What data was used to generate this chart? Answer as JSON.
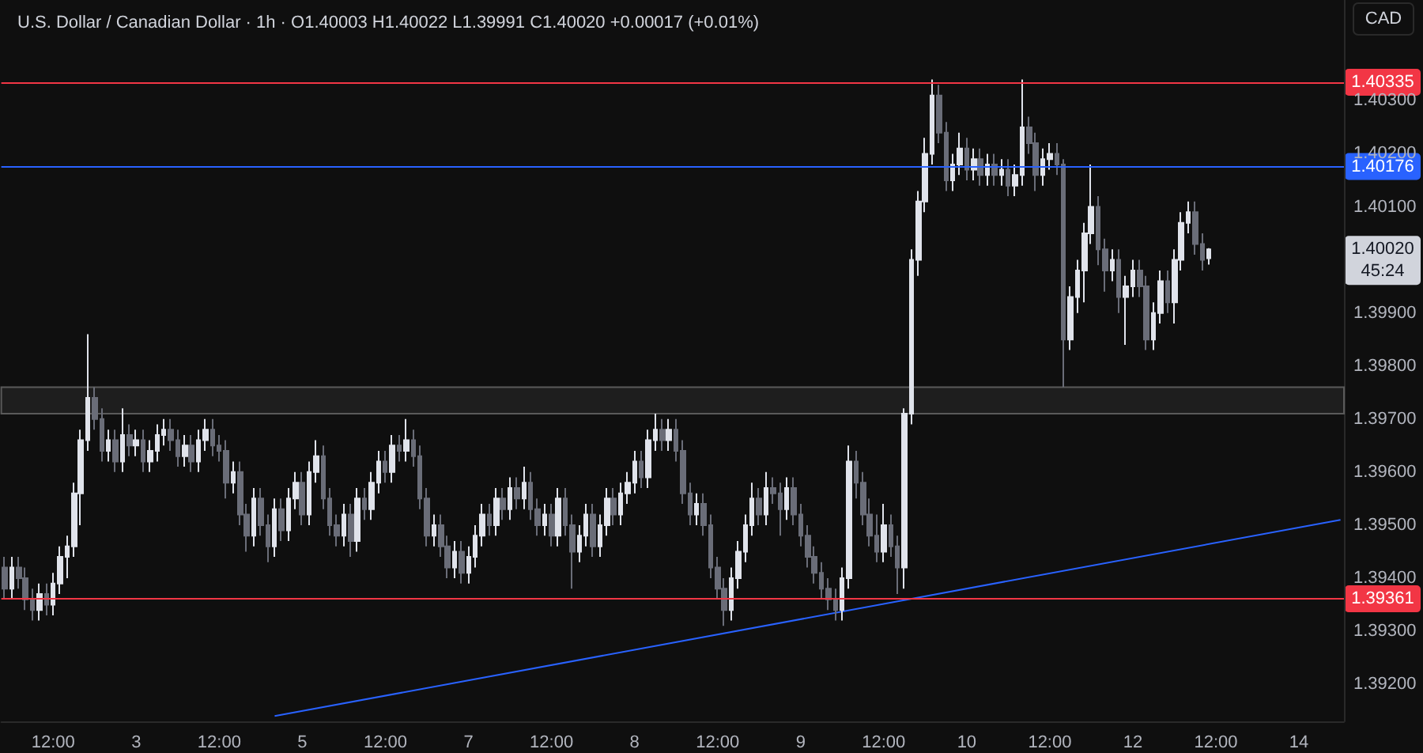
{
  "chart_data": {
    "type": "candlestick",
    "title": "U.S. Dollar / Canadian Dollar · 1h · O1.40003 H1.40022 L1.39991 C1.40020 +0.00017 (+0.01%)",
    "ylabel": "CAD",
    "categories": [
      null,
      null,
      null,
      null,
      null,
      null,
      null,
      "12:00",
      null,
      null,
      null,
      null,
      null,
      null,
      null,
      null,
      null,
      null,
      null,
      "3",
      null,
      null,
      null,
      null,
      null,
      null,
      null,
      null,
      null,
      null,
      null,
      "12:00",
      null,
      null,
      null,
      null,
      null,
      null,
      null,
      null,
      null,
      null,
      null,
      "5",
      null,
      null,
      null,
      null,
      null,
      null,
      null,
      null,
      null,
      null,
      null,
      "12:00",
      null,
      null,
      null,
      null,
      null,
      null,
      null,
      null,
      null,
      null,
      null,
      "7",
      null,
      null,
      null,
      null,
      null,
      null,
      null,
      null,
      null,
      null,
      null,
      "12:00",
      null,
      null,
      null,
      null,
      null,
      null,
      null,
      null,
      null,
      null,
      null,
      "8",
      null,
      null,
      null,
      null,
      null,
      null,
      null,
      null,
      null,
      null,
      null,
      "12:00",
      null,
      null,
      null,
      null,
      null,
      null,
      null,
      null,
      null,
      null,
      null,
      "9",
      null,
      null,
      null,
      null,
      null,
      null,
      null,
      null,
      null,
      null,
      null,
      "12:00",
      null,
      null,
      null,
      null,
      null,
      null,
      null,
      null,
      null,
      null,
      null,
      "10",
      null,
      null,
      null,
      null,
      null,
      null,
      null,
      null,
      null,
      null,
      null,
      "12:00",
      null,
      null,
      null,
      null,
      null,
      null,
      null,
      null,
      null,
      null,
      null,
      "12",
      null,
      null,
      null,
      null,
      null,
      null,
      null,
      null,
      null,
      null,
      null,
      "12:00",
      null,
      null,
      null,
      null,
      null,
      null,
      null,
      null,
      null,
      null,
      null,
      "14",
      null,
      null,
      null,
      null,
      null,
      null
    ],
    "ohlc": [
      [
        1.3942,
        1.3944,
        1.3936,
        1.3938
      ],
      [
        1.3938,
        1.3944,
        1.3936,
        1.3942
      ],
      [
        1.3942,
        1.3944,
        1.3938,
        1.394
      ],
      [
        1.394,
        1.3942,
        1.3934,
        1.3936
      ],
      [
        1.3936,
        1.3938,
        1.3932,
        1.3934
      ],
      [
        1.3934,
        1.3939,
        1.3932,
        1.3937
      ],
      [
        1.3937,
        1.3939,
        1.3933,
        1.3935
      ],
      [
        1.3935,
        1.3941,
        1.3933,
        1.3939
      ],
      [
        1.3939,
        1.3946,
        1.3937,
        1.3944
      ],
      [
        1.3944,
        1.3948,
        1.394,
        1.3946
      ],
      [
        1.3946,
        1.3958,
        1.3944,
        1.3956
      ],
      [
        1.3956,
        1.3968,
        1.395,
        1.3966
      ],
      [
        1.3966,
        1.3986,
        1.3964,
        1.3974
      ],
      [
        1.3974,
        1.3976,
        1.3968,
        1.397
      ],
      [
        1.397,
        1.3972,
        1.3962,
        1.3964
      ],
      [
        1.3964,
        1.3968,
        1.3962,
        1.3966
      ],
      [
        1.3966,
        1.3968,
        1.396,
        1.3962
      ],
      [
        1.3962,
        1.3972,
        1.396,
        1.3967
      ],
      [
        1.3967,
        1.3969,
        1.3963,
        1.3965
      ],
      [
        1.3965,
        1.3968,
        1.3963,
        1.3966
      ],
      [
        1.3966,
        1.3968,
        1.396,
        1.3962
      ],
      [
        1.3962,
        1.3966,
        1.396,
        1.3964
      ],
      [
        1.3964,
        1.3969,
        1.3962,
        1.3967
      ],
      [
        1.3967,
        1.397,
        1.3965,
        1.3968
      ],
      [
        1.3968,
        1.397,
        1.3964,
        1.3966
      ],
      [
        1.3966,
        1.3968,
        1.3961,
        1.3963
      ],
      [
        1.3963,
        1.3967,
        1.3961,
        1.3965
      ],
      [
        1.3965,
        1.3967,
        1.396,
        1.3962
      ],
      [
        1.3962,
        1.3968,
        1.396,
        1.3966
      ],
      [
        1.3966,
        1.397,
        1.3964,
        1.3968
      ],
      [
        1.3968,
        1.397,
        1.3963,
        1.3965
      ],
      [
        1.3965,
        1.3967,
        1.3962,
        1.3964
      ],
      [
        1.3964,
        1.3966,
        1.3955,
        1.3958
      ],
      [
        1.3958,
        1.3962,
        1.3956,
        1.396
      ],
      [
        1.396,
        1.3962,
        1.395,
        1.3952
      ],
      [
        1.3952,
        1.3954,
        1.3945,
        1.3948
      ],
      [
        1.3948,
        1.3957,
        1.3946,
        1.3955
      ],
      [
        1.3955,
        1.3957,
        1.3948,
        1.395
      ],
      [
        1.395,
        1.3952,
        1.3943,
        1.3946
      ],
      [
        1.3946,
        1.3955,
        1.3944,
        1.3953
      ],
      [
        1.3953,
        1.3955,
        1.3947,
        1.3949
      ],
      [
        1.3949,
        1.3957,
        1.3947,
        1.3955
      ],
      [
        1.3955,
        1.396,
        1.3953,
        1.3958
      ],
      [
        1.3958,
        1.396,
        1.395,
        1.3952
      ],
      [
        1.3952,
        1.3962,
        1.395,
        1.396
      ],
      [
        1.396,
        1.3966,
        1.3958,
        1.3963
      ],
      [
        1.3963,
        1.3965,
        1.3953,
        1.3955
      ],
      [
        1.3955,
        1.3957,
        1.3948,
        1.395
      ],
      [
        1.395,
        1.3952,
        1.3946,
        1.3948
      ],
      [
        1.3948,
        1.3954,
        1.3946,
        1.3952
      ],
      [
        1.3952,
        1.3954,
        1.3944,
        1.3947
      ],
      [
        1.3947,
        1.3957,
        1.3945,
        1.3955
      ],
      [
        1.3955,
        1.3957,
        1.3951,
        1.3953
      ],
      [
        1.3953,
        1.396,
        1.3951,
        1.3958
      ],
      [
        1.3958,
        1.3964,
        1.3956,
        1.3962
      ],
      [
        1.3962,
        1.3964,
        1.3958,
        1.396
      ],
      [
        1.396,
        1.3967,
        1.3958,
        1.3965
      ],
      [
        1.3965,
        1.3967,
        1.3962,
        1.3964
      ],
      [
        1.3964,
        1.397,
        1.3962,
        1.3966
      ],
      [
        1.3966,
        1.3968,
        1.3961,
        1.3963
      ],
      [
        1.3963,
        1.3965,
        1.3953,
        1.3955
      ],
      [
        1.3955,
        1.3957,
        1.3946,
        1.3948
      ],
      [
        1.3948,
        1.3952,
        1.3946,
        1.395
      ],
      [
        1.395,
        1.3952,
        1.3944,
        1.3946
      ],
      [
        1.3946,
        1.3948,
        1.394,
        1.3942
      ],
      [
        1.3942,
        1.3947,
        1.394,
        1.3945
      ],
      [
        1.3945,
        1.3947,
        1.3939,
        1.3941
      ],
      [
        1.3941,
        1.3946,
        1.3939,
        1.3944
      ],
      [
        1.3944,
        1.395,
        1.3942,
        1.3948
      ],
      [
        1.3948,
        1.3954,
        1.3946,
        1.3952
      ],
      [
        1.3952,
        1.3954,
        1.3948,
        1.395
      ],
      [
        1.395,
        1.3957,
        1.3948,
        1.3955
      ],
      [
        1.3955,
        1.3957,
        1.3951,
        1.3953
      ],
      [
        1.3953,
        1.3959,
        1.3951,
        1.3957
      ],
      [
        1.3957,
        1.3959,
        1.3953,
        1.3955
      ],
      [
        1.3955,
        1.3961,
        1.3953,
        1.3958
      ],
      [
        1.3958,
        1.396,
        1.3951,
        1.3953
      ],
      [
        1.3953,
        1.3955,
        1.3948,
        1.395
      ],
      [
        1.395,
        1.3954,
        1.3948,
        1.3952
      ],
      [
        1.3952,
        1.3954,
        1.3946,
        1.3948
      ],
      [
        1.3948,
        1.3957,
        1.3946,
        1.3955
      ],
      [
        1.3955,
        1.3957,
        1.3948,
        1.395
      ],
      [
        1.395,
        1.3952,
        1.3938,
        1.3945
      ],
      [
        1.3945,
        1.395,
        1.3943,
        1.3948
      ],
      [
        1.3948,
        1.3954,
        1.3946,
        1.3952
      ],
      [
        1.3952,
        1.3954,
        1.3944,
        1.3946
      ],
      [
        1.3946,
        1.3952,
        1.3944,
        1.395
      ],
      [
        1.395,
        1.3957,
        1.3948,
        1.3955
      ],
      [
        1.3955,
        1.3957,
        1.395,
        1.3952
      ],
      [
        1.3952,
        1.3958,
        1.395,
        1.3956
      ],
      [
        1.3956,
        1.396,
        1.3954,
        1.3958
      ],
      [
        1.3958,
        1.3964,
        1.3956,
        1.3962
      ],
      [
        1.3962,
        1.3964,
        1.3957,
        1.3959
      ],
      [
        1.3959,
        1.3968,
        1.3957,
        1.3966
      ],
      [
        1.3966,
        1.3971,
        1.3964,
        1.3968
      ],
      [
        1.3968,
        1.397,
        1.3964,
        1.3966
      ],
      [
        1.3966,
        1.397,
        1.3964,
        1.3968
      ],
      [
        1.3968,
        1.397,
        1.3962,
        1.3964
      ],
      [
        1.3964,
        1.3966,
        1.3954,
        1.3956
      ],
      [
        1.3956,
        1.3958,
        1.395,
        1.3952
      ],
      [
        1.3952,
        1.3956,
        1.395,
        1.3954
      ],
      [
        1.3954,
        1.3956,
        1.3948,
        1.395
      ],
      [
        1.395,
        1.3952,
        1.394,
        1.3942
      ],
      [
        1.3942,
        1.3944,
        1.3936,
        1.3938
      ],
      [
        1.3938,
        1.394,
        1.3931,
        1.3934
      ],
      [
        1.3934,
        1.3942,
        1.3932,
        1.394
      ],
      [
        1.394,
        1.3947,
        1.3938,
        1.3945
      ],
      [
        1.3945,
        1.3952,
        1.3943,
        1.395
      ],
      [
        1.395,
        1.3958,
        1.3948,
        1.3955
      ],
      [
        1.3955,
        1.3957,
        1.395,
        1.3952
      ],
      [
        1.3952,
        1.396,
        1.395,
        1.3957
      ],
      [
        1.3957,
        1.3959,
        1.3954,
        1.3956
      ],
      [
        1.3956,
        1.3958,
        1.3948,
        1.3953
      ],
      [
        1.3953,
        1.3959,
        1.3951,
        1.3957
      ],
      [
        1.3957,
        1.3959,
        1.395,
        1.3952
      ],
      [
        1.3952,
        1.3954,
        1.3946,
        1.3948
      ],
      [
        1.3948,
        1.395,
        1.3942,
        1.3944
      ],
      [
        1.3944,
        1.3946,
        1.3939,
        1.3941
      ],
      [
        1.3941,
        1.3943,
        1.3936,
        1.3938
      ],
      [
        1.3938,
        1.394,
        1.3934,
        1.3936
      ],
      [
        1.3936,
        1.3938,
        1.3932,
        1.3934
      ],
      [
        1.3934,
        1.3942,
        1.3932,
        1.394
      ],
      [
        1.394,
        1.3965,
        1.3938,
        1.3962
      ],
      [
        1.3962,
        1.3964,
        1.3955,
        1.3958
      ],
      [
        1.3958,
        1.396,
        1.395,
        1.3952
      ],
      [
        1.3952,
        1.3955,
        1.3946,
        1.3948
      ],
      [
        1.3948,
        1.3952,
        1.3943,
        1.3945
      ],
      [
        1.3945,
        1.3954,
        1.3943,
        1.395
      ],
      [
        1.395,
        1.3952,
        1.3944,
        1.3946
      ],
      [
        1.3946,
        1.3948,
        1.3937,
        1.3942
      ],
      [
        1.3942,
        1.3972,
        1.3938,
        1.3971
      ],
      [
        1.3971,
        1.4002,
        1.3969,
        1.4
      ],
      [
        1.4,
        1.4013,
        1.3997,
        1.4011
      ],
      [
        1.4011,
        1.4023,
        1.4009,
        1.402
      ],
      [
        1.402,
        1.4034,
        1.4018,
        1.4031
      ],
      [
        1.4031,
        1.4033,
        1.4022,
        1.4024
      ],
      [
        1.4024,
        1.4026,
        1.4013,
        1.4015
      ],
      [
        1.4015,
        1.402,
        1.4013,
        1.4018
      ],
      [
        1.4018,
        1.4024,
        1.4016,
        1.4021
      ],
      [
        1.4021,
        1.4023,
        1.4015,
        1.4017
      ],
      [
        1.4017,
        1.4021,
        1.4015,
        1.4019
      ],
      [
        1.4019,
        1.4021,
        1.4014,
        1.4016
      ],
      [
        1.4016,
        1.402,
        1.4014,
        1.4018
      ],
      [
        1.4018,
        1.402,
        1.4014,
        1.4016
      ],
      [
        1.4016,
        1.4019,
        1.4014,
        1.4017
      ],
      [
        1.4017,
        1.4019,
        1.4012,
        1.4014
      ],
      [
        1.4014,
        1.4018,
        1.4012,
        1.4016
      ],
      [
        1.4016,
        1.4034,
        1.4014,
        1.4025
      ],
      [
        1.4025,
        1.4027,
        1.402,
        1.4022
      ],
      [
        1.4022,
        1.4024,
        1.4013,
        1.4016
      ],
      [
        1.4016,
        1.4021,
        1.4014,
        1.4019
      ],
      [
        1.4019,
        1.4022,
        1.4017,
        1.402
      ],
      [
        1.402,
        1.4022,
        1.4016,
        1.4018
      ],
      [
        1.4018,
        1.4019,
        1.3976,
        1.3985
      ],
      [
        1.3985,
        1.3995,
        1.3983,
        1.3993
      ],
      [
        1.3993,
        1.4,
        1.399,
        1.3998
      ],
      [
        1.3998,
        1.4007,
        1.3992,
        1.4005
      ],
      [
        1.4005,
        1.4018,
        1.4003,
        1.401
      ],
      [
        1.401,
        1.4012,
        1.3999,
        1.4002
      ],
      [
        1.4002,
        1.4004,
        1.3994,
        1.3998
      ],
      [
        1.3998,
        1.4002,
        1.3996,
        1.4
      ],
      [
        1.4,
        1.4002,
        1.399,
        1.3993
      ],
      [
        1.3993,
        1.3997,
        1.3984,
        1.3995
      ],
      [
        1.3995,
        1.4,
        1.3993,
        1.3998
      ],
      [
        1.3998,
        1.4,
        1.3993,
        1.3995
      ],
      [
        1.3995,
        1.3997,
        1.3983,
        1.3985
      ],
      [
        1.3985,
        1.3992,
        1.3983,
        1.399
      ],
      [
        1.399,
        1.3998,
        1.3988,
        1.3996
      ],
      [
        1.3996,
        1.3998,
        1.399,
        1.3992
      ],
      [
        1.3992,
        1.4002,
        1.3988,
        1.4
      ],
      [
        1.4,
        1.4009,
        1.3998,
        1.4007
      ],
      [
        1.4007,
        1.4011,
        1.4005,
        1.4009
      ],
      [
        1.4009,
        1.4011,
        1.4001,
        1.4003
      ],
      [
        1.4003,
        1.4005,
        1.3998,
        1.4
      ],
      [
        1.40003,
        1.40022,
        1.39991,
        1.4002
      ],
      null,
      null,
      null,
      null,
      null,
      null,
      null,
      null,
      null,
      null,
      null,
      null,
      null,
      null,
      null,
      null,
      null,
      null,
      null
    ],
    "series": [
      {
        "type": "line",
        "color": "#2962ff",
        "values": [
          null,
          null,
          null,
          null,
          null,
          null,
          null,
          null,
          null,
          null,
          null,
          null,
          null,
          null,
          null,
          null,
          null,
          null,
          null,
          null,
          null,
          null,
          null,
          null,
          null,
          null,
          null,
          null,
          null,
          null,
          null,
          null,
          null,
          null,
          null,
          null,
          null,
          null,
          null,
          1.3914,
          null,
          null,
          null,
          null,
          null,
          null,
          null,
          null,
          null,
          null,
          null,
          null,
          null,
          null,
          null,
          null,
          null,
          null,
          null,
          null,
          null,
          null,
          null,
          null,
          null,
          null,
          null,
          null,
          null,
          null,
          null,
          null,
          null,
          null,
          null,
          null,
          null,
          null,
          null,
          null,
          null,
          null,
          null,
          null,
          null,
          null,
          null,
          null,
          null,
          null,
          null,
          null,
          null,
          null,
          null,
          null,
          null,
          null,
          null,
          null,
          null,
          null,
          null,
          null,
          null,
          null,
          null,
          null,
          null,
          null,
          null,
          null,
          null,
          null,
          null,
          null,
          null,
          null,
          null,
          null,
          null,
          null,
          null,
          null,
          null,
          null,
          null,
          null,
          null,
          null,
          null,
          null,
          null,
          null,
          null,
          null,
          null,
          null,
          null,
          null,
          null,
          null,
          null,
          null,
          null,
          null,
          null,
          null,
          null,
          null,
          null,
          null,
          null,
          null,
          null,
          null,
          null,
          null,
          null,
          null,
          null,
          null,
          null,
          null,
          null,
          null,
          null,
          null,
          null,
          null,
          null,
          null,
          null,
          null,
          null,
          null,
          null,
          null,
          null,
          null,
          null,
          null,
          null,
          null,
          null,
          null,
          null,
          null,
          null,
          null,
          null,
          null,
          null,
          1.3951
        ]
      }
    ],
    "ylim": [
      1.3913,
      1.4049
    ],
    "yticks": [
      {
        "value": 1.392,
        "label": "1.39200"
      },
      {
        "value": 1.393,
        "label": "1.39300"
      },
      {
        "value": 1.394,
        "label": "1.39400"
      },
      {
        "value": 1.395,
        "label": "1.39500"
      },
      {
        "value": 1.396,
        "label": "1.39600"
      },
      {
        "value": 1.397,
        "label": "1.39700"
      },
      {
        "value": 1.398,
        "label": "1.39800"
      },
      {
        "value": 1.399,
        "label": "1.39900"
      },
      {
        "value": 1.401,
        "label": "1.40100"
      },
      {
        "value": 1.402,
        "label": "1.40200"
      },
      {
        "value": 1.403,
        "label": "1.40300"
      }
    ],
    "ref_lines": [
      {
        "axis": "y",
        "value": 1.40176,
        "label": "1.40176",
        "color": "#2962ff"
      },
      {
        "axis": "y",
        "value": 1.40335,
        "label": "1.40335",
        "color": "#f23645"
      },
      {
        "axis": "y",
        "value": 1.39361,
        "label": "1.39361",
        "color": "#f23645"
      }
    ],
    "bands": [
      {
        "axis": "y",
        "from": 1.3971,
        "to": 1.3976,
        "color": "#1e1e1e"
      }
    ],
    "annotations": [
      "1.40020",
      "45:24"
    ],
    "grid": false
  }
}
